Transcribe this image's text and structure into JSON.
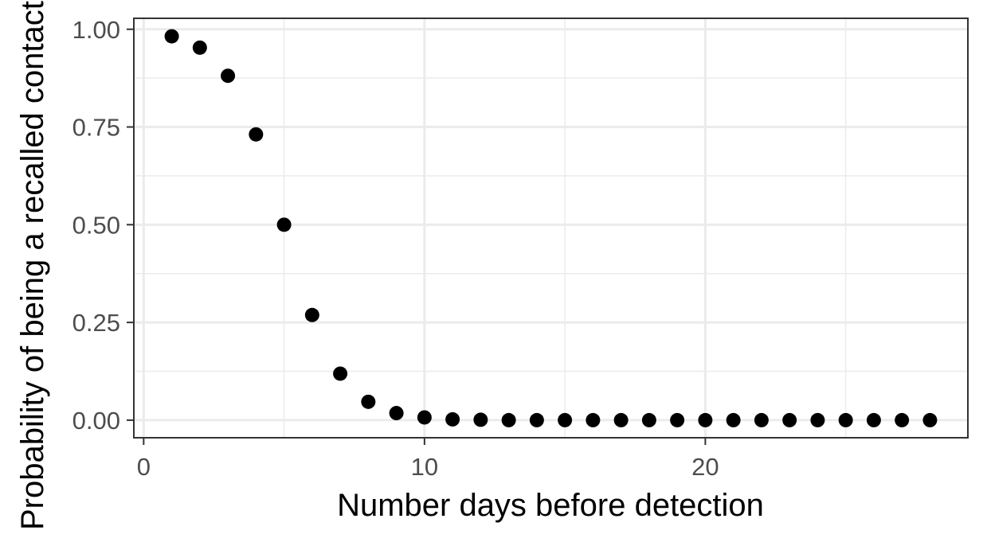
{
  "chart_data": {
    "type": "scatter",
    "title": "",
    "xlabel": "Number days before detection",
    "ylabel": "Probability of being a recalled contact",
    "xlim": [
      -0.35,
      29.35
    ],
    "ylim": [
      -0.045,
      1.028
    ],
    "x_ticks": [
      0,
      10,
      20
    ],
    "x_tick_labels": [
      "0",
      "10",
      "20"
    ],
    "x_minor_ticks": [
      5,
      15,
      25
    ],
    "y_ticks": [
      0,
      0.25,
      0.5,
      0.75,
      1
    ],
    "y_tick_labels": [
      "0.00",
      "0.25",
      "0.50",
      "0.75",
      "1.00"
    ],
    "y_minor_ticks": [
      0.125,
      0.375,
      0.625,
      0.875
    ],
    "grid": true,
    "legend": "none",
    "point_color": "#000000",
    "series": [
      {
        "x": [
          1,
          2,
          3,
          4,
          5,
          6,
          7,
          8,
          9,
          10,
          11,
          12,
          13,
          14,
          15,
          16,
          17,
          18,
          19,
          20,
          21,
          22,
          23,
          24,
          25,
          26,
          27,
          28
        ],
        "y": [
          0.982,
          0.953,
          0.881,
          0.731,
          0.5,
          0.269,
          0.119,
          0.047,
          0.018,
          0.007,
          0.002,
          0.001,
          0.0,
          0.0,
          0.0,
          0.0,
          0.0,
          0.0,
          0.0,
          0.0,
          0.0,
          0.0,
          0.0,
          0.0,
          0.0,
          0.0,
          0.0,
          0.0
        ]
      }
    ]
  }
}
